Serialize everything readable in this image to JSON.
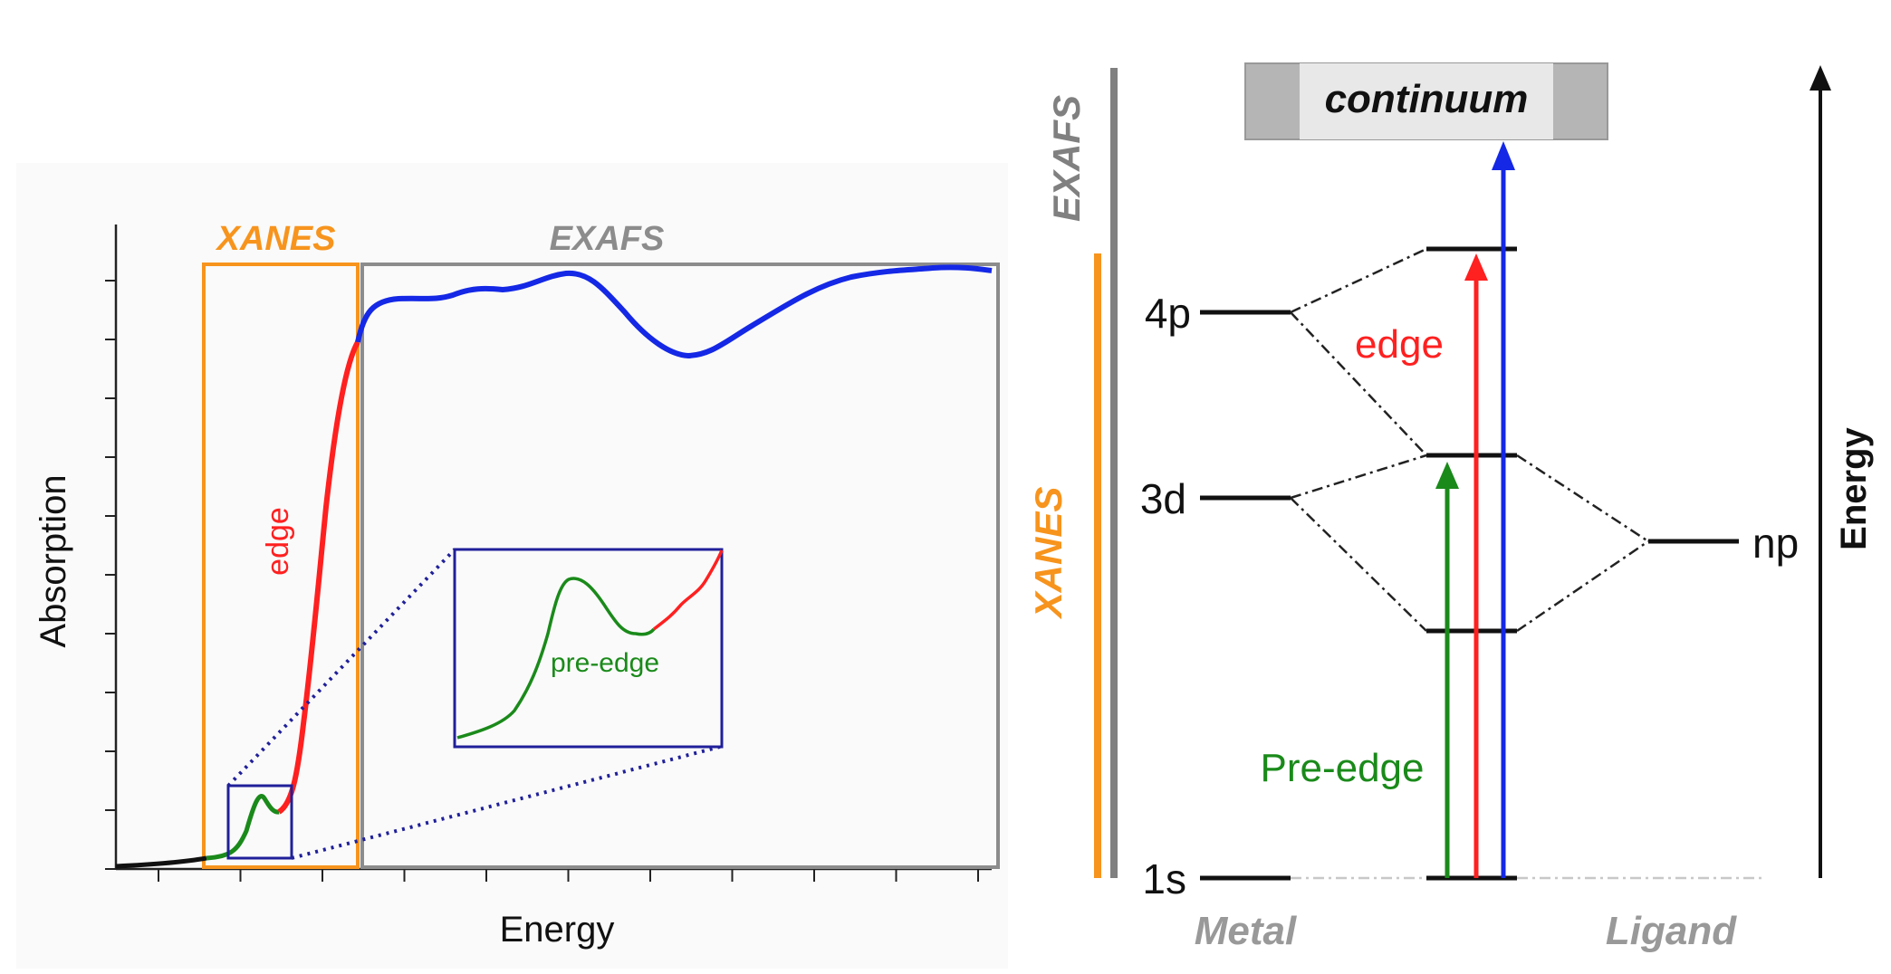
{
  "spectrum": {
    "x_axis_label": "Energy",
    "y_axis_label": "Absorption",
    "region_xanes": "XANES",
    "region_exafs": "EXAFS",
    "edge_label": "edge",
    "preedge_label": "pre-edge"
  },
  "levels": {
    "continuum": "continuum",
    "metal_levels": [
      "4p",
      "3d",
      "1s"
    ],
    "ligand_level": "np",
    "transition_edge": "edge",
    "transition_preedge": "Pre-edge",
    "energy_axis": "Energy",
    "metal_label": "Metal",
    "ligand_label": "Ligand",
    "region_exafs": "EXAFS",
    "region_xanes": "XANES"
  },
  "colors": {
    "xanes": "#f7941d",
    "exafs": "#8c8c8c",
    "edge": "#ff2020",
    "preedge": "#1a8a1a",
    "exafs_curve": "#1428e6",
    "inset_box": "#20209a"
  }
}
